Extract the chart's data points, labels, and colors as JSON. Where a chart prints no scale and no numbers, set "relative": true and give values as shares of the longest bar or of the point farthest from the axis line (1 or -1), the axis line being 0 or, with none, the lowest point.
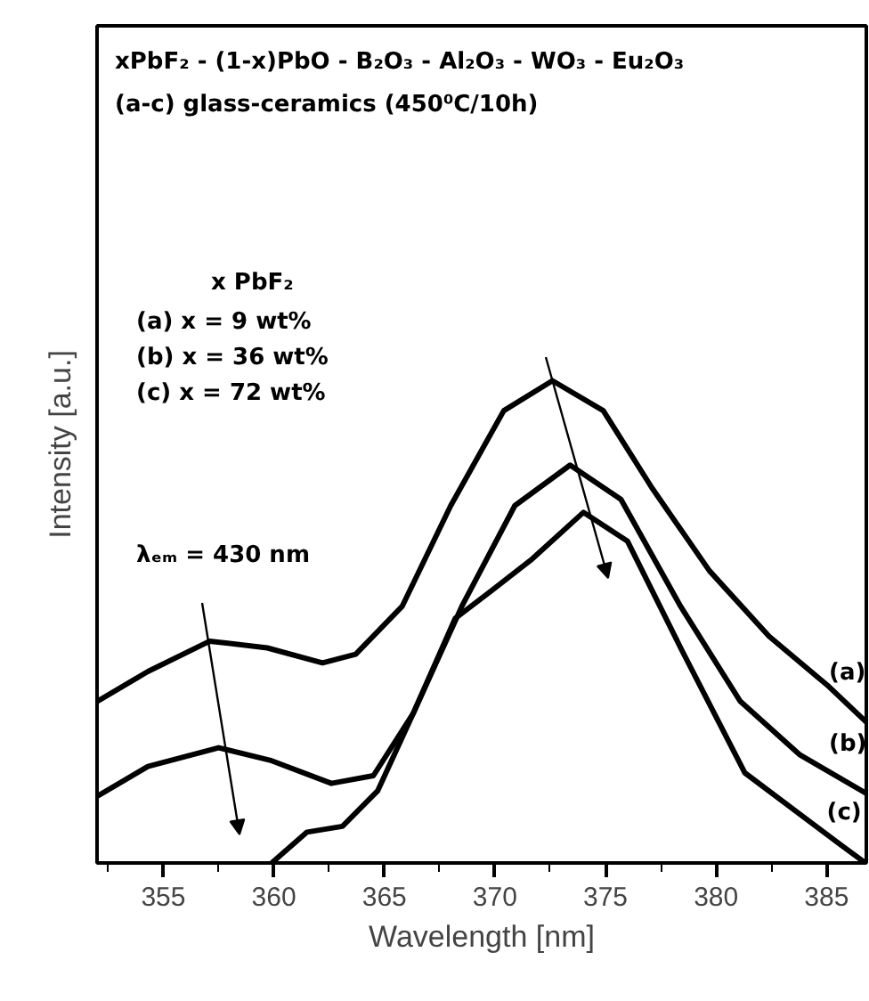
{
  "chart_data": {
    "type": "line",
    "title": "xPbF₂ - (1-x)PbO - B₂O₃ - Al₂O₃ - WO₃ - Eu₂O₃",
    "subtitle": "(a-c) glass-ceramics (450⁰C/10h)",
    "xlabel": "Wavelength [nm]",
    "ylabel": "Intensity [a.u.]",
    "relative": true,
    "xlim": [
      352,
      386.8
    ],
    "xticks": [
      355,
      360,
      365,
      370,
      375,
      380,
      385
    ],
    "grid": false,
    "line_style": "solid",
    "tick_labels": "x",
    "annotations": [
      "x PbF₂",
      "(a)  x =  9 wt%",
      "(b)  x = 36 wt%",
      "(c)  x = 72 wt%",
      "λₑₘ = 430 nm"
    ],
    "series": [
      {
        "name": "(a)",
        "color": "#000000",
        "x": [
          352.0,
          354.3,
          357.1,
          359.7,
          362.2,
          363.7,
          365.8,
          368.0,
          370.4,
          372.6,
          374.9,
          377.1,
          379.7,
          382.4,
          385.1,
          386.8
        ],
        "values": [
          0.335,
          0.397,
          0.46,
          0.446,
          0.415,
          0.433,
          0.532,
          0.741,
          0.938,
          1.0,
          0.938,
          0.778,
          0.606,
          0.47,
          0.366,
          0.292
        ]
      },
      {
        "name": "(b)",
        "color": "#000000",
        "x": [
          352.0,
          354.3,
          357.5,
          359.9,
          362.6,
          364.5,
          366.3,
          368.5,
          370.9,
          373.4,
          375.7,
          378.4,
          381.1,
          383.8,
          386.8
        ],
        "values": [
          0.138,
          0.2,
          0.239,
          0.212,
          0.165,
          0.181,
          0.31,
          0.532,
          0.741,
          0.825,
          0.754,
          0.532,
          0.335,
          0.224,
          0.144
        ]
      },
      {
        "name": "(c)",
        "color": "#000000",
        "x": [
          359.9,
          361.5,
          363.1,
          364.7,
          366.3,
          368.2,
          369.8,
          371.7,
          374.0,
          376.0,
          378.4,
          381.3,
          383.8,
          385.6,
          386.7
        ],
        "values": [
          0.0,
          0.064,
          0.076,
          0.15,
          0.31,
          0.507,
          0.563,
          0.631,
          0.727,
          0.667,
          0.446,
          0.187,
          0.101,
          0.039,
          0.002
        ]
      }
    ]
  }
}
